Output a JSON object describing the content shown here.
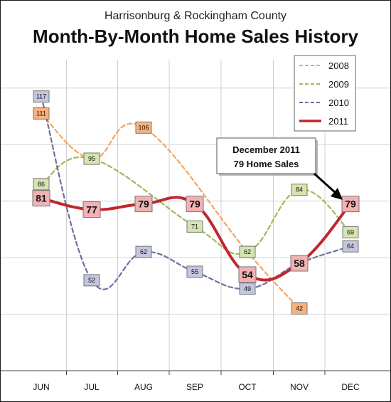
{
  "chart_data": {
    "type": "line",
    "subtitle": "Harrisonburg & Rockingham County",
    "title": "Month-By-Month Home Sales History",
    "categories": [
      "JUN",
      "JUL",
      "AUG",
      "SEP",
      "OCT",
      "NOV",
      "DEC"
    ],
    "ylim": [
      20,
      130
    ],
    "grid": true,
    "legend_position": "top-right",
    "series": [
      {
        "name": "2008",
        "values": [
          111,
          95,
          106,
          null,
          62,
          42,
          null
        ],
        "color": "#f4a460",
        "label_fill": "#f7b27f",
        "style": "dashed"
      },
      {
        "name": "2009",
        "values": [
          86,
          95,
          null,
          71,
          62,
          84,
          69
        ],
        "color": "#9bbb59",
        "label_fill": "#d6e5b0",
        "style": "dashed"
      },
      {
        "name": "2010",
        "values": [
          117,
          52,
          62,
          55,
          49,
          58,
          64
        ],
        "color": "#7070a0",
        "label_fill": "#c3c6df",
        "style": "dashed"
      },
      {
        "name": "2011",
        "values": [
          81,
          77,
          79,
          79,
          54,
          58,
          79
        ],
        "color": "#c0282e",
        "label_fill": "#f2b2b4",
        "style": "solid"
      }
    ],
    "annotation": {
      "line1": "December 2011",
      "line2": "79 Home Sales"
    }
  }
}
